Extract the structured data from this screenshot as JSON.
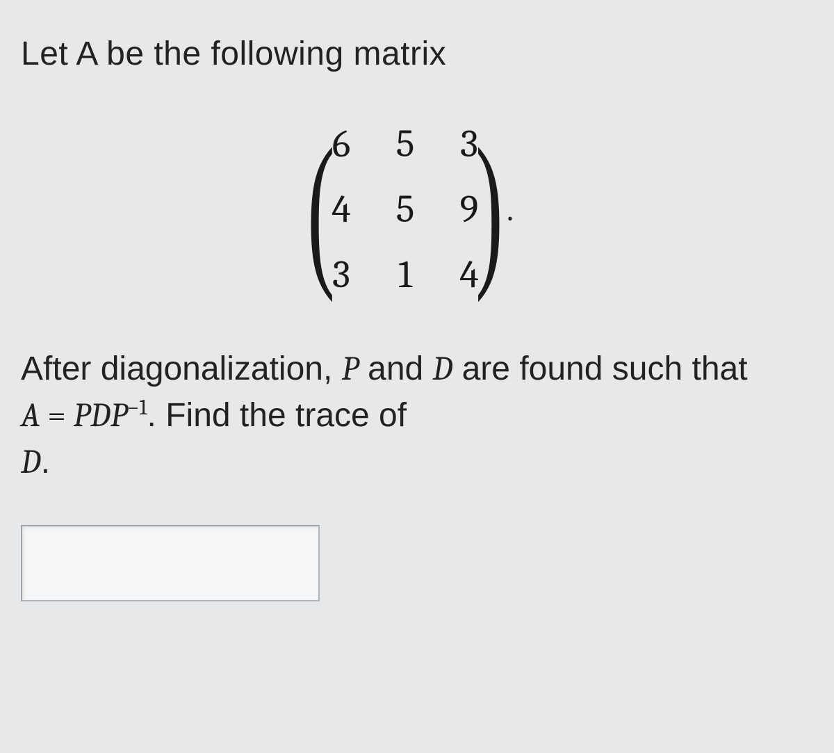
{
  "intro": "Let A be the following matrix",
  "matrix": {
    "rows": [
      [
        "6",
        "5",
        "3"
      ],
      [
        "4",
        "5",
        "9"
      ],
      [
        "3",
        "1",
        "4"
      ]
    ],
    "trailing_period": "."
  },
  "question": {
    "seg1": "After diagonalization, ",
    "P": "P",
    "seg2": " and ",
    "D": "D",
    "seg3": " are found such that ",
    "A": "A",
    "eq": " = ",
    "P2": "P",
    "D2": "D",
    "P3": "P",
    "exp": "−1",
    "seg4": ". Find the trace of ",
    "D3": "D",
    "seg5": "."
  },
  "answer": {
    "value": "",
    "placeholder": ""
  }
}
